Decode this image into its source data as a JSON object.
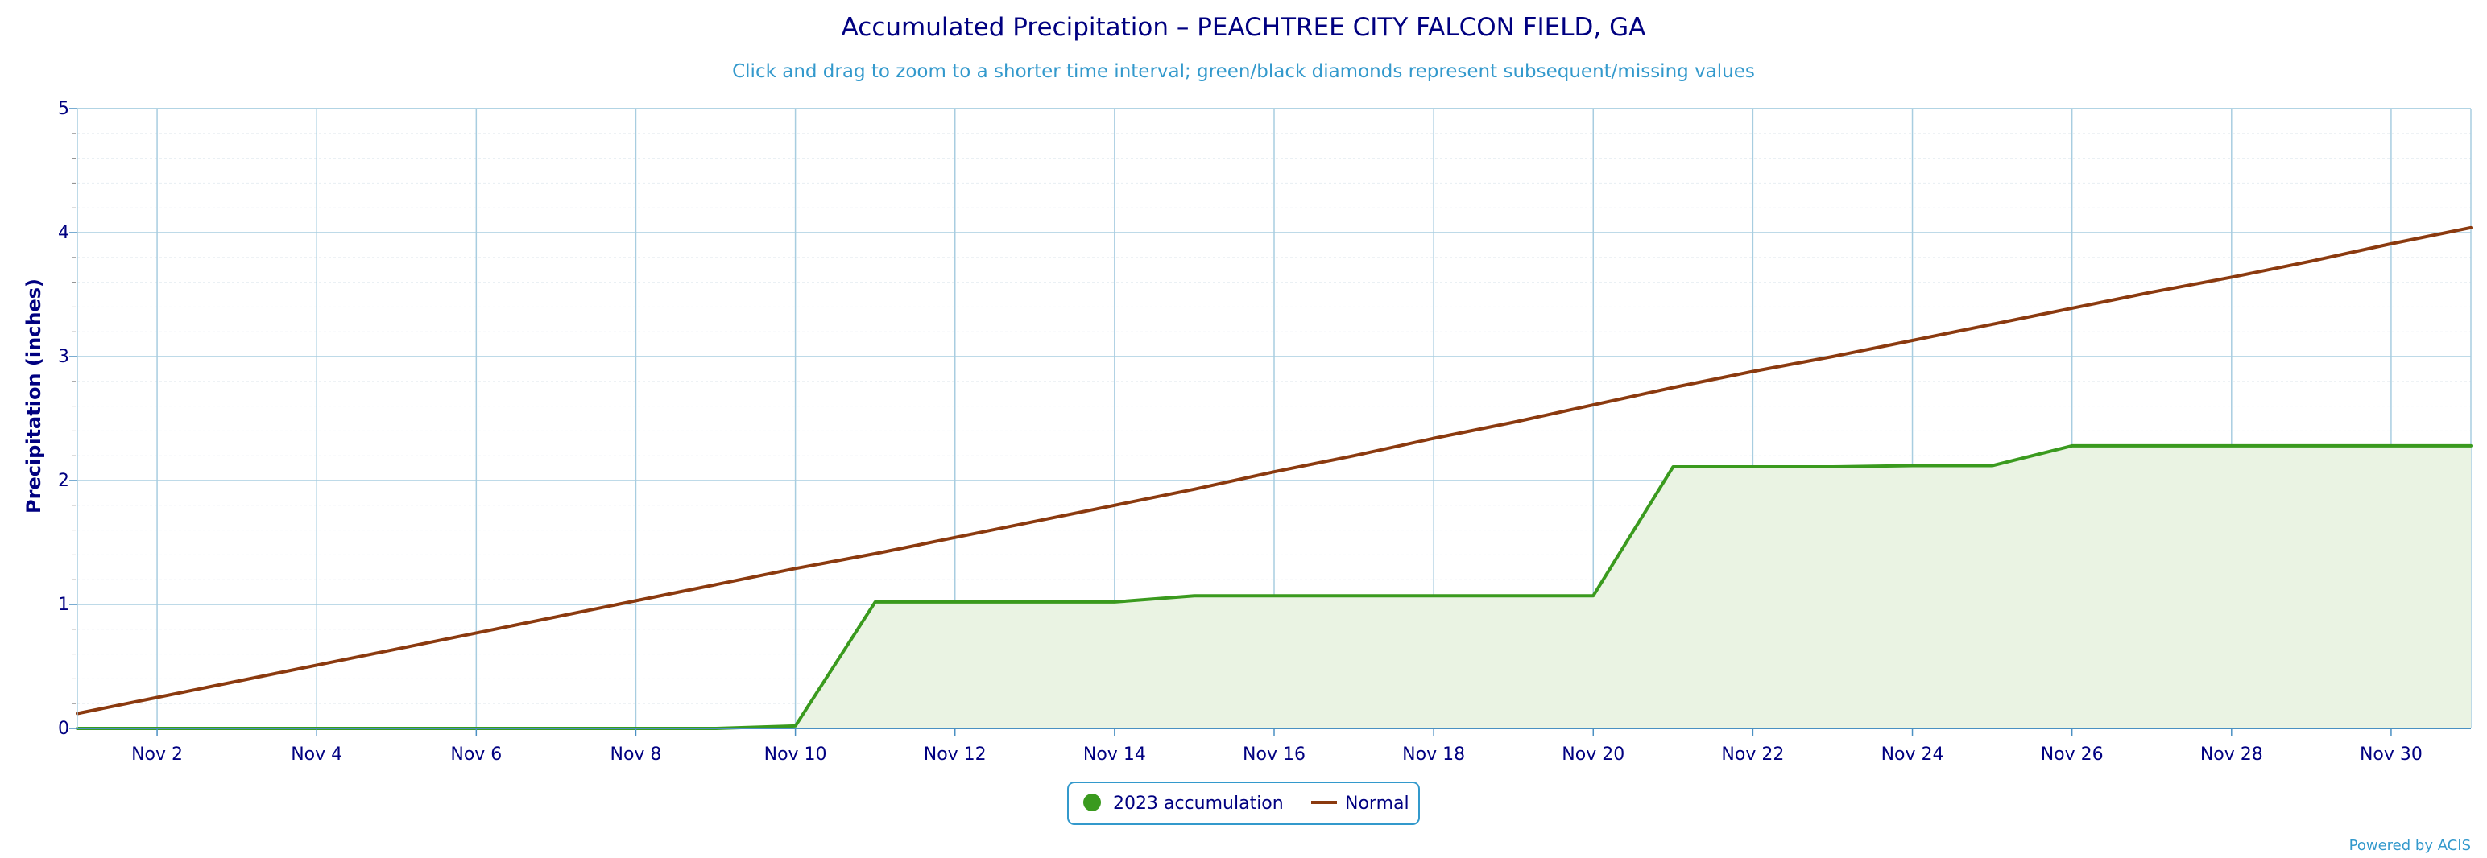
{
  "chart_data": {
    "type": "line",
    "title": "Accumulated Precipitation – PEACHTREE CITY FALCON FIELD, GA",
    "subtitle": "Click and drag to zoom to a shorter time interval; green/black diamonds represent subsequent/missing values",
    "ylabel": "Precipitation (inches)",
    "xlabel": "",
    "ylim": [
      0,
      5
    ],
    "yticks": [
      "0",
      "1",
      "2",
      "3",
      "4",
      "5"
    ],
    "xlim": [
      1,
      31
    ],
    "xticks": [
      {
        "day": 2,
        "label": "Nov 2"
      },
      {
        "day": 4,
        "label": "Nov 4"
      },
      {
        "day": 6,
        "label": "Nov 6"
      },
      {
        "day": 8,
        "label": "Nov 8"
      },
      {
        "day": 10,
        "label": "Nov 10"
      },
      {
        "day": 12,
        "label": "Nov 12"
      },
      {
        "day": 14,
        "label": "Nov 14"
      },
      {
        "day": 16,
        "label": "Nov 16"
      },
      {
        "day": 18,
        "label": "Nov 18"
      },
      {
        "day": 20,
        "label": "Nov 20"
      },
      {
        "day": 22,
        "label": "Nov 22"
      },
      {
        "day": 24,
        "label": "Nov 24"
      },
      {
        "day": 26,
        "label": "Nov 26"
      },
      {
        "day": 28,
        "label": "Nov 28"
      },
      {
        "day": 30,
        "label": "Nov 30"
      }
    ],
    "grid": true,
    "legend_position": "bottom-center",
    "series": [
      {
        "name": "2023 accumulation",
        "color": "#3a9a1e",
        "fill": "#eaf3e3",
        "style": "area",
        "x": [
          1,
          2,
          3,
          4,
          5,
          6,
          7,
          8,
          9,
          10,
          11,
          12,
          13,
          14,
          15,
          16,
          17,
          18,
          19,
          20,
          21,
          22,
          23,
          24,
          25,
          26,
          27,
          28,
          29,
          30,
          31
        ],
        "values": [
          0,
          0,
          0,
          0,
          0,
          0,
          0,
          0,
          0,
          0.02,
          1.02,
          1.02,
          1.02,
          1.02,
          1.07,
          1.07,
          1.07,
          1.07,
          1.07,
          1.07,
          2.11,
          2.11,
          2.11,
          2.12,
          2.12,
          2.28,
          2.28,
          2.28,
          2.28,
          2.28,
          2.28
        ]
      },
      {
        "name": "Normal",
        "color": "#8b3a0f",
        "style": "line",
        "x": [
          1,
          2,
          3,
          4,
          5,
          6,
          7,
          8,
          9,
          10,
          11,
          12,
          13,
          14,
          15,
          16,
          17,
          18,
          19,
          20,
          21,
          22,
          23,
          24,
          25,
          26,
          27,
          28,
          29,
          30,
          31
        ],
        "values": [
          0.12,
          0.25,
          0.38,
          0.51,
          0.64,
          0.77,
          0.9,
          1.03,
          1.16,
          1.29,
          1.41,
          1.54,
          1.67,
          1.8,
          1.93,
          2.07,
          2.2,
          2.34,
          2.47,
          2.61,
          2.75,
          2.88,
          3.0,
          3.13,
          3.26,
          3.39,
          3.52,
          3.64,
          3.77,
          3.91,
          4.04
        ]
      }
    ]
  },
  "credit": "Powered by ACIS"
}
